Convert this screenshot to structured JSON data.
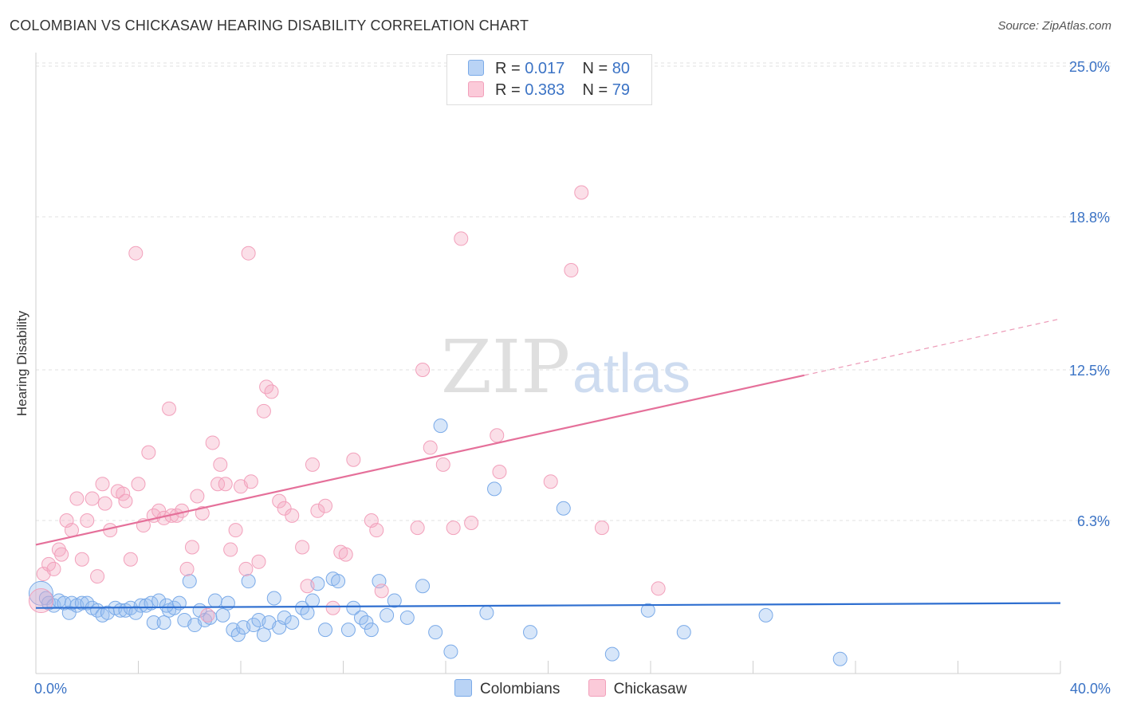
{
  "title": "COLOMBIAN VS CHICKASAW HEARING DISABILITY CORRELATION CHART",
  "source": "Source: ZipAtlas.com",
  "watermark": {
    "zip": "ZIP",
    "atlas": "atlas"
  },
  "legend": {
    "series": [
      {
        "name": "Colombians",
        "r_label": "R = ",
        "r_value": "0.017",
        "n_label": "N = ",
        "n_value": "80"
      },
      {
        "name": "Chickasaw",
        "r_label": "R = ",
        "r_value": "0.383",
        "n_label": "N = ",
        "n_value": "79"
      }
    ]
  },
  "chart_data": {
    "type": "scatter",
    "title": "COLOMBIAN VS CHICKASAW HEARING DISABILITY CORRELATION CHART",
    "xlabel": "",
    "ylabel": "Hearing Disability",
    "xlim": [
      0,
      40
    ],
    "ylim": [
      0,
      25
    ],
    "x_tick_labels": [
      "0.0%",
      "40.0%"
    ],
    "y_ticks": [
      {
        "value": 6.3,
        "label": "6.3%"
      },
      {
        "value": 12.5,
        "label": "12.5%"
      },
      {
        "value": 18.8,
        "label": "18.8%"
      },
      {
        "value": 25.0,
        "label": "25.0%"
      }
    ],
    "colors": {
      "Colombians": "#7aaae8",
      "Chickasaw": "#f2a0bb",
      "Colombians_line": "#2f6fd0",
      "Chickasaw_line": "#e5709a"
    },
    "series": [
      {
        "name": "Colombians",
        "trend": {
          "x0": 0,
          "y0": 2.7,
          "x1": 40,
          "y1": 2.9,
          "solid_to": 40
        },
        "points": [
          [
            0.2,
            3.3
          ],
          [
            0.4,
            3.1
          ],
          [
            0.5,
            2.9
          ],
          [
            0.7,
            2.8
          ],
          [
            0.9,
            3.0
          ],
          [
            1.1,
            2.9
          ],
          [
            1.3,
            2.5
          ],
          [
            1.4,
            2.9
          ],
          [
            1.6,
            2.8
          ],
          [
            1.8,
            2.9
          ],
          [
            2.0,
            2.9
          ],
          [
            2.2,
            2.7
          ],
          [
            2.4,
            2.6
          ],
          [
            2.6,
            2.4
          ],
          [
            2.8,
            2.5
          ],
          [
            3.1,
            2.7
          ],
          [
            3.3,
            2.6
          ],
          [
            3.5,
            2.6
          ],
          [
            3.7,
            2.7
          ],
          [
            3.9,
            2.5
          ],
          [
            4.1,
            2.8
          ],
          [
            4.3,
            2.8
          ],
          [
            4.5,
            2.9
          ],
          [
            4.6,
            2.1
          ],
          [
            4.8,
            3.0
          ],
          [
            5.0,
            2.1
          ],
          [
            5.2,
            2.6
          ],
          [
            5.4,
            2.7
          ],
          [
            5.6,
            2.9
          ],
          [
            5.8,
            2.2
          ],
          [
            6.0,
            3.8
          ],
          [
            6.2,
            2.0
          ],
          [
            6.4,
            2.6
          ],
          [
            6.6,
            2.2
          ],
          [
            6.8,
            2.3
          ],
          [
            7.0,
            3.0
          ],
          [
            7.3,
            2.4
          ],
          [
            7.5,
            2.9
          ],
          [
            7.7,
            1.8
          ],
          [
            7.9,
            1.6
          ],
          [
            8.1,
            1.9
          ],
          [
            8.3,
            3.8
          ],
          [
            8.5,
            2.0
          ],
          [
            8.7,
            2.2
          ],
          [
            8.9,
            1.6
          ],
          [
            9.1,
            2.1
          ],
          [
            9.3,
            3.1
          ],
          [
            9.5,
            1.9
          ],
          [
            9.7,
            2.3
          ],
          [
            10.0,
            2.1
          ],
          [
            10.4,
            2.7
          ],
          [
            10.6,
            2.5
          ],
          [
            10.8,
            3.0
          ],
          [
            11.0,
            3.7
          ],
          [
            11.3,
            1.8
          ],
          [
            11.6,
            3.9
          ],
          [
            11.8,
            3.8
          ],
          [
            12.2,
            1.8
          ],
          [
            12.4,
            2.7
          ],
          [
            12.7,
            2.3
          ],
          [
            12.9,
            2.1
          ],
          [
            13.1,
            1.8
          ],
          [
            13.4,
            3.8
          ],
          [
            13.7,
            2.4
          ],
          [
            14.0,
            3.0
          ],
          [
            14.5,
            2.3
          ],
          [
            15.1,
            3.6
          ],
          [
            15.6,
            1.7
          ],
          [
            15.8,
            10.2
          ],
          [
            16.2,
            0.9
          ],
          [
            17.6,
            2.5
          ],
          [
            17.9,
            7.6
          ],
          [
            19.3,
            1.7
          ],
          [
            20.6,
            6.8
          ],
          [
            22.5,
            0.8
          ],
          [
            23.9,
            2.6
          ],
          [
            25.3,
            1.7
          ],
          [
            28.5,
            2.4
          ],
          [
            31.4,
            0.6
          ],
          [
            5.1,
            2.8
          ]
        ]
      },
      {
        "name": "Chickasaw",
        "trend": {
          "x0": 0,
          "y0": 5.3,
          "x1": 40,
          "y1": 14.6,
          "solid_to": 30
        },
        "points": [
          [
            0.2,
            3.0
          ],
          [
            0.3,
            4.1
          ],
          [
            0.5,
            4.5
          ],
          [
            0.7,
            4.3
          ],
          [
            0.9,
            5.1
          ],
          [
            1.0,
            4.9
          ],
          [
            1.2,
            6.3
          ],
          [
            1.4,
            5.9
          ],
          [
            1.6,
            7.2
          ],
          [
            1.8,
            4.7
          ],
          [
            2.0,
            6.3
          ],
          [
            2.2,
            7.2
          ],
          [
            2.4,
            4.0
          ],
          [
            2.6,
            7.8
          ],
          [
            2.7,
            7.0
          ],
          [
            2.9,
            5.9
          ],
          [
            3.2,
            7.5
          ],
          [
            3.4,
            7.4
          ],
          [
            3.5,
            7.1
          ],
          [
            3.7,
            4.7
          ],
          [
            3.9,
            17.3
          ],
          [
            4.0,
            7.8
          ],
          [
            4.2,
            6.1
          ],
          [
            4.4,
            9.1
          ],
          [
            4.6,
            6.5
          ],
          [
            4.8,
            6.7
          ],
          [
            5.0,
            6.4
          ],
          [
            5.2,
            10.9
          ],
          [
            5.3,
            6.5
          ],
          [
            5.5,
            6.5
          ],
          [
            5.7,
            6.7
          ],
          [
            5.9,
            4.3
          ],
          [
            6.1,
            5.2
          ],
          [
            6.3,
            7.3
          ],
          [
            6.5,
            6.6
          ],
          [
            6.7,
            2.4
          ],
          [
            6.9,
            9.5
          ],
          [
            7.1,
            7.8
          ],
          [
            7.2,
            8.6
          ],
          [
            7.4,
            7.8
          ],
          [
            7.6,
            5.1
          ],
          [
            7.8,
            5.9
          ],
          [
            8.0,
            7.7
          ],
          [
            8.2,
            4.3
          ],
          [
            8.3,
            17.3
          ],
          [
            8.4,
            7.9
          ],
          [
            8.7,
            4.6
          ],
          [
            8.9,
            10.8
          ],
          [
            9.0,
            11.8
          ],
          [
            9.2,
            11.6
          ],
          [
            9.5,
            7.1
          ],
          [
            9.7,
            6.8
          ],
          [
            10.0,
            6.5
          ],
          [
            10.4,
            5.2
          ],
          [
            10.6,
            3.6
          ],
          [
            10.8,
            8.6
          ],
          [
            11.0,
            6.7
          ],
          [
            11.3,
            6.9
          ],
          [
            11.6,
            2.7
          ],
          [
            11.9,
            5.0
          ],
          [
            12.1,
            4.9
          ],
          [
            12.4,
            8.8
          ],
          [
            13.1,
            6.3
          ],
          [
            13.3,
            5.9
          ],
          [
            13.5,
            3.4
          ],
          [
            14.9,
            6.0
          ],
          [
            15.1,
            12.5
          ],
          [
            15.4,
            9.3
          ],
          [
            15.9,
            8.6
          ],
          [
            16.3,
            6.0
          ],
          [
            16.6,
            17.9
          ],
          [
            17.0,
            6.2
          ],
          [
            18.0,
            9.8
          ],
          [
            18.1,
            8.3
          ],
          [
            20.1,
            7.9
          ],
          [
            20.9,
            16.6
          ],
          [
            21.3,
            19.8
          ],
          [
            22.1,
            6.0
          ],
          [
            24.3,
            3.5
          ]
        ]
      }
    ]
  }
}
